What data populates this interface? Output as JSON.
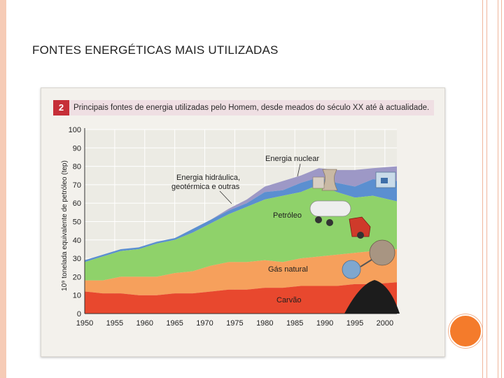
{
  "slide": {
    "title": "FONTES ENERGÉTICAS MAIS UTILIZADAS"
  },
  "figure": {
    "number": "2",
    "caption": "Principais fontes de energia utilizadas pelo Homem, desde meados do século XX até à actualidade."
  },
  "colors": {
    "carvao": "#e8482e",
    "gas": "#f6a05c",
    "petroleo": "#8fd26a",
    "hidraulica": "#5b8fd0",
    "nuclear": "#9d98c6",
    "plot_bg": "#ecebe4",
    "grid": "#ffffff",
    "figure_number_bg": "#c62f38",
    "accent_circle": "#f47b2b"
  },
  "chart_data": {
    "type": "area",
    "stacked": true,
    "ylabel": "10⁹ tonelada equivalente de petróleo (tep)",
    "xlabel": "",
    "ylim": [
      0,
      100
    ],
    "xlim": [
      1950,
      2002
    ],
    "yticks": [
      0,
      10,
      20,
      30,
      40,
      50,
      60,
      70,
      80,
      90,
      100
    ],
    "xticks": [
      1950,
      1955,
      1960,
      1965,
      1970,
      1975,
      1980,
      1985,
      1990,
      1995,
      2000
    ],
    "grid": true,
    "x": [
      1950,
      1953,
      1956,
      1959,
      1962,
      1965,
      1968,
      1971,
      1974,
      1977,
      1980,
      1983,
      1986,
      1989,
      1992,
      1995,
      1998,
      2002
    ],
    "cumulative_totals": {
      "carvao": [
        12,
        11,
        11,
        10,
        10,
        11,
        11,
        12,
        13,
        13,
        14,
        14,
        15,
        15,
        15,
        16,
        16,
        17
      ],
      "gas_natural": [
        18,
        18,
        20,
        20,
        20,
        22,
        23,
        26,
        28,
        28,
        29,
        28,
        30,
        31,
        32,
        33,
        34,
        35
      ],
      "petroleo": [
        28,
        31,
        34,
        35,
        38,
        40,
        44,
        49,
        54,
        58,
        62,
        64,
        66,
        70,
        66,
        63,
        64,
        61
      ],
      "energia_hidraulica_geotermica_e_outras": [
        29,
        32,
        35,
        36,
        39,
        41,
        46,
        51,
        56,
        60,
        66,
        67,
        71,
        74,
        71,
        69,
        73,
        72
      ],
      "energia_nuclear": [
        29,
        32,
        35,
        36,
        39,
        41,
        46,
        51,
        57,
        62,
        69,
        72,
        75,
        79,
        78,
        78,
        79,
        80
      ]
    },
    "series": [
      {
        "name": "Carvão",
        "values": [
          12,
          11,
          11,
          10,
          10,
          11,
          11,
          12,
          13,
          13,
          14,
          14,
          15,
          15,
          15,
          16,
          16,
          17
        ]
      },
      {
        "name": "Gás natural",
        "values": [
          6,
          7,
          9,
          10,
          10,
          11,
          12,
          14,
          15,
          15,
          15,
          14,
          15,
          16,
          17,
          17,
          18,
          18
        ]
      },
      {
        "name": "Petróleo",
        "values": [
          10,
          13,
          14,
          15,
          18,
          18,
          21,
          23,
          26,
          30,
          33,
          36,
          36,
          39,
          34,
          30,
          30,
          26
        ]
      },
      {
        "name": "Energia hidráulica, geotérmica e outras",
        "values": [
          1,
          1,
          1,
          1,
          1,
          1,
          2,
          2,
          2,
          2,
          4,
          3,
          5,
          4,
          5,
          6,
          9,
          11
        ]
      },
      {
        "name": "Energia nuclear",
        "values": [
          0,
          0,
          0,
          0,
          0,
          0,
          0,
          0,
          1,
          2,
          3,
          5,
          4,
          5,
          7,
          9,
          6,
          8
        ]
      }
    ],
    "labels": {
      "nuclear": "Energia nuclear",
      "hidraulica_line1": "Energia hidráulica,",
      "hidraulica_line2": "geotérmica e outras",
      "petroleo": "Petróleo",
      "gas": "Gás natural",
      "carvao": "Carvão"
    }
  }
}
